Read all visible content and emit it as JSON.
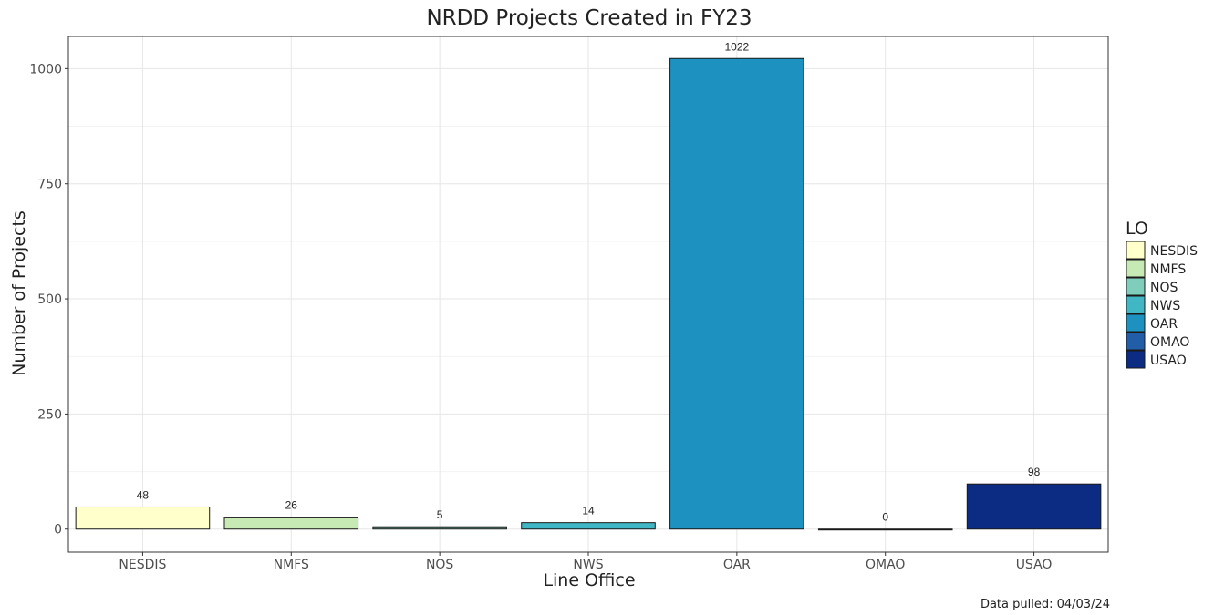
{
  "chart_data": {
    "type": "bar",
    "title": "NRDD Projects Created in FY23",
    "xlabel": "Line Office",
    "ylabel": "Number of Projects",
    "categories": [
      "NESDIS",
      "NMFS",
      "NOS",
      "NWS",
      "OAR",
      "OMAO",
      "USAO"
    ],
    "values": [
      48,
      26,
      5,
      14,
      1022,
      0,
      98
    ],
    "data_labels": [
      "48",
      "26",
      "5",
      "14",
      "1022",
      "0",
      "98"
    ],
    "colors": [
      "#FFFFCC",
      "#C7E9B4",
      "#7FCDBB",
      "#41B6C4",
      "#1D91C0",
      "#225EA8",
      "#0C2C84"
    ],
    "ylim": [
      -50,
      1070
    ],
    "yticks": [
      0,
      250,
      500,
      750,
      1000
    ],
    "ytick_labels": [
      "0",
      "250",
      "500",
      "750",
      "1000"
    ],
    "grid": true,
    "legend": {
      "title": "LO",
      "placement": "right",
      "entries": [
        "NESDIS",
        "NMFS",
        "NOS",
        "NWS",
        "OAR",
        "OMAO",
        "USAO"
      ]
    },
    "caption": "Data pulled: 04/03/24"
  }
}
